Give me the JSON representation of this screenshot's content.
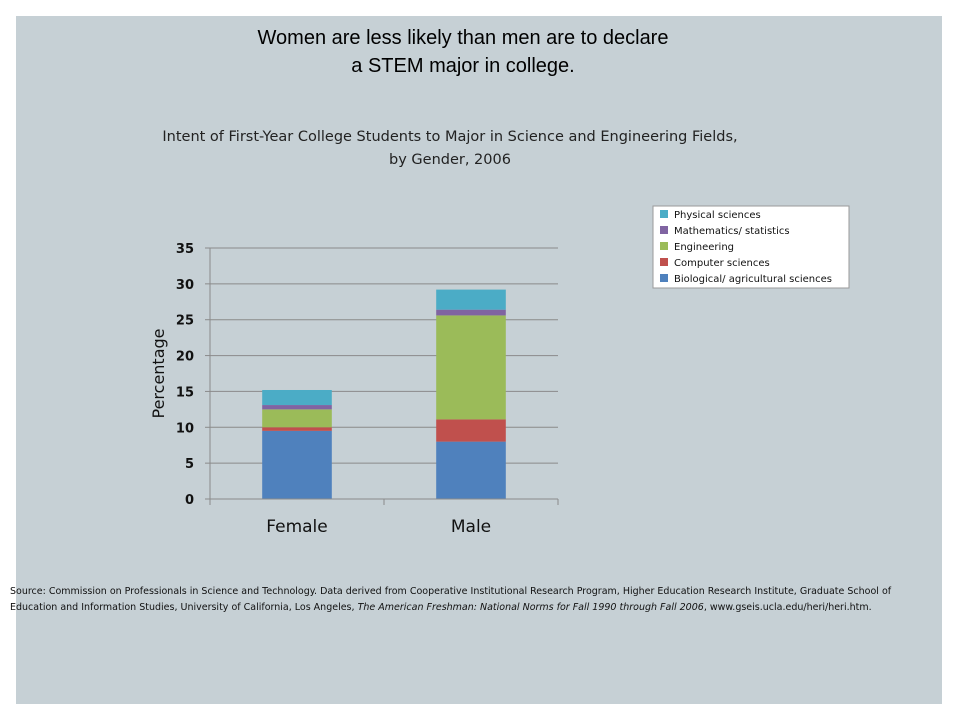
{
  "headline": {
    "line1": "Women are less likely than men are to declare",
    "line2": "a STEM major in college."
  },
  "chart_data": {
    "type": "bar",
    "stacked": true,
    "title_line1": "Intent of First-Year College Students to Major in Science and Engineering Fields,",
    "title_line2": "by Gender, 2006",
    "categories": [
      "Female",
      "Male"
    ],
    "ylabel": "Percentage",
    "xlabel": "",
    "ylim": [
      0,
      35
    ],
    "yticks": [
      0,
      5,
      10,
      15,
      20,
      25,
      30,
      35
    ],
    "grid": true,
    "legend_position": "top-right",
    "series": [
      {
        "name": "Biological/ agricultural sciences",
        "color": "#4f81bd",
        "values": [
          9.5,
          8.0
        ]
      },
      {
        "name": "Computer sciences",
        "color": "#c0504d",
        "values": [
          0.5,
          3.1
        ]
      },
      {
        "name": "Engineering",
        "color": "#9bbb59",
        "values": [
          2.5,
          14.5
        ]
      },
      {
        "name": "Mathematics/ statistics",
        "color": "#8064a2",
        "values": [
          0.6,
          0.8
        ]
      },
      {
        "name": "Physical sciences",
        "color": "#4bacc6",
        "values": [
          2.1,
          2.8
        ]
      }
    ]
  },
  "source": {
    "prefix": "Source: Commission  on Professionals  in Science and Technology. Data derived from Cooperative Institutional Research Program, Higher Education Research Institute, Graduate School of Education and Information Studies, University of California, Los Angeles,",
    "title": "The American Freshman: National Norms for Fall 1990 through Fall 2006",
    "suffix": ", www.gseis.ucla.edu/heri/heri.htm."
  }
}
